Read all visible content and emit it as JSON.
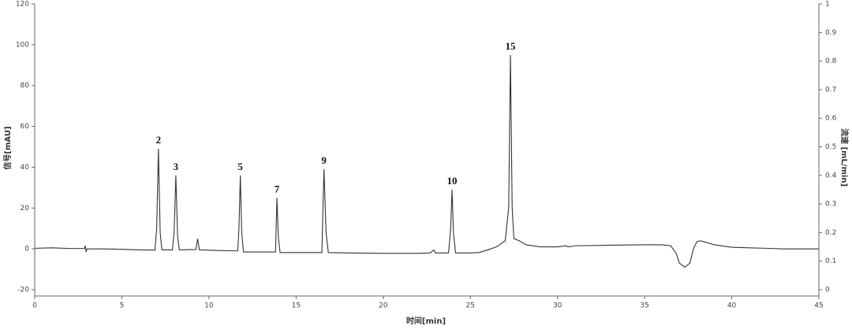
{
  "chart_data": {
    "type": "line",
    "x_label": "时间[min]",
    "y_label": "信号[mAU]",
    "y2_label": "流速 [mL/min]",
    "xlim": [
      0,
      45
    ],
    "xticks": [
      0,
      5,
      10,
      15,
      20,
      25,
      30,
      35,
      40,
      45
    ],
    "ylim": [
      -20,
      120
    ],
    "yticks": [
      -20,
      0,
      20,
      40,
      60,
      80,
      100,
      120
    ],
    "y2lim": [
      0,
      1
    ],
    "y2ticks": [
      0,
      0.1,
      0.2,
      0.3,
      0.4,
      0.5,
      0.6,
      0.7,
      0.8,
      0.9,
      1
    ],
    "x": [
      0,
      1,
      2,
      2.85,
      2.9,
      2.95,
      3.0,
      4,
      5,
      6,
      6.9,
      7.0,
      7.1,
      7.2,
      7.3,
      7.9,
      8.0,
      8.1,
      8.2,
      8.3,
      9.25,
      9.35,
      9.45,
      10.5,
      11.65,
      11.72,
      11.8,
      11.88,
      11.98,
      13.0,
      13.82,
      13.9,
      13.98,
      14.08,
      15,
      16.48,
      16.6,
      16.72,
      16.85,
      18,
      20,
      22,
      22.7,
      22.9,
      23.0,
      23.75,
      23.87,
      23.95,
      24.03,
      24.15,
      25,
      25.5,
      26,
      26.5,
      27.0,
      27.2,
      27.3,
      27.4,
      27.5,
      27.8,
      28.2,
      29,
      30,
      30.5,
      30.6,
      31,
      33,
      35,
      36,
      36.5,
      36.8,
      37.0,
      37.3,
      37.6,
      37.8,
      38.0,
      38.2,
      38.6,
      39,
      40,
      41,
      42,
      43,
      44,
      45
    ],
    "series": [
      {
        "color": "#333333",
        "values": [
          0.3,
          0.5,
          0.2,
          0.2,
          1.5,
          -1.5,
          0,
          0,
          -0.2,
          -0.5,
          -0.6,
          10,
          49,
          8,
          -0.5,
          -0.5,
          8,
          36,
          6,
          -0.5,
          -0.3,
          5,
          -0.5,
          -0.8,
          -1,
          10,
          36,
          8,
          -1.5,
          -1.5,
          -1.5,
          25,
          6,
          -1.8,
          -1.8,
          -1.8,
          39,
          8,
          -1.8,
          -2,
          -2.2,
          -2.2,
          -2,
          -0.5,
          -2,
          -2,
          10,
          29,
          8,
          -2,
          -2,
          -1.8,
          -0.5,
          1,
          4,
          20,
          95,
          20,
          5,
          4,
          2,
          1,
          1,
          1.5,
          1,
          1.5,
          1.8,
          2,
          2,
          1.5,
          -2,
          -7,
          -9,
          -7,
          0,
          3.5,
          4,
          3,
          2,
          0.8,
          0.5,
          0.3,
          0,
          0,
          0
        ]
      }
    ],
    "peak_labels": [
      {
        "label": "2",
        "x": 7.1
      },
      {
        "label": "3",
        "x": 8.1
      },
      {
        "label": "5",
        "x": 11.8
      },
      {
        "label": "7",
        "x": 13.9
      },
      {
        "label": "9",
        "x": 16.6
      },
      {
        "label": "10",
        "x": 23.95
      },
      {
        "label": "15",
        "x": 27.3
      }
    ]
  }
}
